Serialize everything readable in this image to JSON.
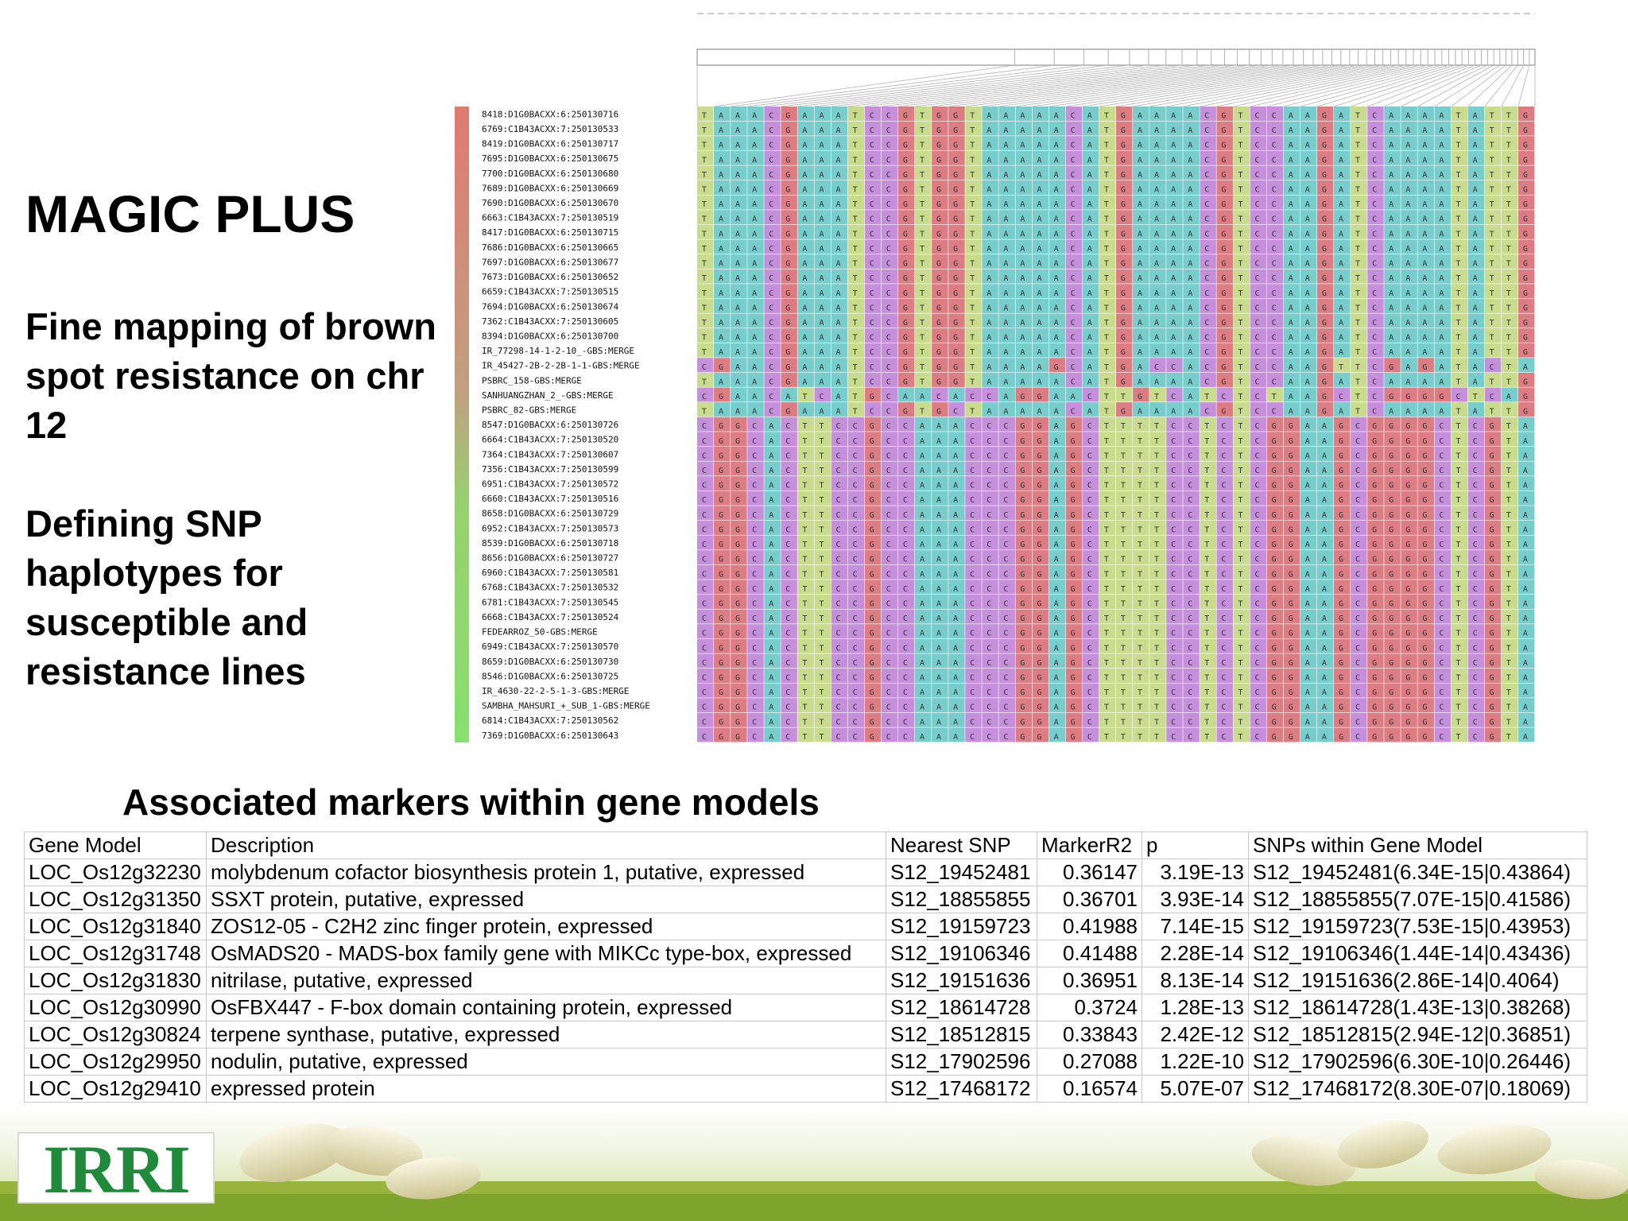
{
  "slide": {
    "title": "MAGIC PLUS",
    "subtitle_1": "Fine mapping of brown spot resistance on chr 12",
    "subtitle_2": "Defining SNP haplotypes for susceptible and resistance lines"
  },
  "haplotype": {
    "samples": [
      "8418:D1G0BACXX:6:250130716",
      "6769:C1B43ACXX:7:250130533",
      "8419:D1G0BACXX:6:250130717",
      "7695:D1G0BACXX:6:250130675",
      "7700:D1G0BACXX:6:250130680",
      "7689:D1G0BACXX:6:250130669",
      "7690:D1G0BACXX:6:250130670",
      "6663:C1B43ACXX:7:250130519",
      "8417:D1G0BACXX:6:250130715",
      "7686:D1G0BACXX:6:250130665",
      "7697:D1G0BACXX:6:250130677",
      "7673:D1G0BACXX:6:250130652",
      "6659:C1B43ACXX:7:250130515",
      "7694:D1G0BACXX:6:250130674",
      "7362:C1B43ACXX:7:250130605",
      "8394:D1G0BACXX:6:250130700",
      "IR_77298-14-1-2-10_-GBS:MERGE",
      "IR_45427-2B-2-2B-1-1-GBS:MERGE",
      "PSBRC_158-GBS:MERGE",
      "SANHUANGZHAN_2_-GBS:MERGE",
      "PSBRC_82-GBS:MERGE",
      "8547:D1G0BACXX:6:250130726",
      "6664:C1B43ACXX:7:250130520",
      "7364:C1B43ACXX:7:250130607",
      "7356:C1B43ACXX:7:250130599",
      "6951:C1B43ACXX:7:250130572",
      "6660:C1B43ACXX:7:250130516",
      "8658:D1G0BACXX:6:250130729",
      "6952:C1B43ACXX:7:250130573",
      "8539:D1G0BACXX:6:250130718",
      "8656:D1G0BACXX:6:250130727",
      "6960:C1B43ACXX:7:250130581",
      "6768:C1B43ACXX:7:250130532",
      "6781:C1B43ACXX:7:250130545",
      "6668:C1B43ACXX:7:250130524",
      "FEDEARROZ_50-GBS:MERGE",
      "6949:C1B43ACXX:7:250130570",
      "8659:D1G0BACXX:6:250130730",
      "8546:D1G0BACXX:6:250130725",
      "IR_4630-22-2-5-1-3-GBS:MERGE",
      "SAMBHA_MAHSURI_+_SUB_1-GBS:MERGE",
      "6814:C1B43ACXX:7:250130562",
      "7369:D1G0BACXX:6:250130643"
    ],
    "susceptible_haplotype": "TAAACGAAATCCGTGGTAAAAACATGAAAACGTCCAAGATCAAAATATTG",
    "resistant_haplotype": "CGGCACTTCCGCCAAACCCGGAGCTTTTCCTCTCGGAAGCGGGGCTCGTA",
    "intermediate_rows": {
      "17": "CGAACGAAATCCGTGGTAAAAGCATGACCACGTCCAAGTTCGAGATACTA",
      "18": "TAAACGAAATCCGTGGTAAAAACATGAAAACGTCCAAGATCAAAATATTG",
      "19": "CGAACATCATGCAACACCAGGAACTTGTCATCTCTAAGCTCGGGGCTCAG",
      "20": "TAAACGAAATCCGTGCTAAAAACATGAAAACGTCCAAGATCAAAATATTG"
    },
    "base_colors": {
      "A": "#77cccc",
      "C": "#c58fdc",
      "G": "#dc7c83",
      "T": "#c9dc8e"
    },
    "side_bar_colors": {
      "top": "#e07a70",
      "bottom": "#88e070"
    }
  },
  "table": {
    "heading": "Associated markers within gene models",
    "columns": [
      "Gene Model",
      "Description",
      "Nearest SNP",
      "MarkerR2",
      "p",
      "SNPs within Gene Model"
    ],
    "rows": [
      [
        "LOC_Os12g32230",
        "molybdenum cofactor biosynthesis protein 1, putative, expressed",
        "S12_19452481",
        "0.36147",
        "3.19E-13",
        "S12_19452481(6.34E-15|0.43864)"
      ],
      [
        "LOC_Os12g31350",
        "SSXT protein, putative, expressed",
        "S12_18855855",
        "0.36701",
        "3.93E-14",
        "S12_18855855(7.07E-15|0.41586)"
      ],
      [
        "LOC_Os12g31840",
        "ZOS12-05 - C2H2 zinc finger protein, expressed",
        "S12_19159723",
        "0.41988",
        "7.14E-15",
        "S12_19159723(7.53E-15|0.43953)"
      ],
      [
        "LOC_Os12g31748",
        "OsMADS20 - MADS-box family gene with MIKCc type-box, expressed",
        "S12_19106346",
        "0.41488",
        "2.28E-14",
        "S12_19106346(1.44E-14|0.43436)"
      ],
      [
        "LOC_Os12g31830",
        "nitrilase, putative, expressed",
        "S12_19151636",
        "0.36951",
        "8.13E-14",
        "S12_19151636(2.86E-14|0.4064)"
      ],
      [
        "LOC_Os12g30990",
        "OsFBX447 - F-box domain containing protein, expressed",
        "S12_18614728",
        "0.3724",
        "1.28E-13",
        "S12_18614728(1.43E-13|0.38268)"
      ],
      [
        "LOC_Os12g30824",
        "terpene synthase, putative, expressed",
        "S12_18512815",
        "0.33843",
        "2.42E-12",
        "S12_18512815(2.94E-12|0.36851)"
      ],
      [
        "LOC_Os12g29950",
        "nodulin, putative, expressed",
        "S12_17902596",
        "0.27088",
        "1.22E-10",
        "S12_17902596(6.30E-10|0.26446)"
      ],
      [
        "LOC_Os12g29410",
        "expressed protein",
        "S12_17468172",
        "0.16574",
        "5.07E-07",
        "S12_17468172(8.30E-07|0.18069)"
      ]
    ]
  },
  "footer": {
    "logo_text": "IRRI",
    "logo_color": "#1f8a3a"
  }
}
